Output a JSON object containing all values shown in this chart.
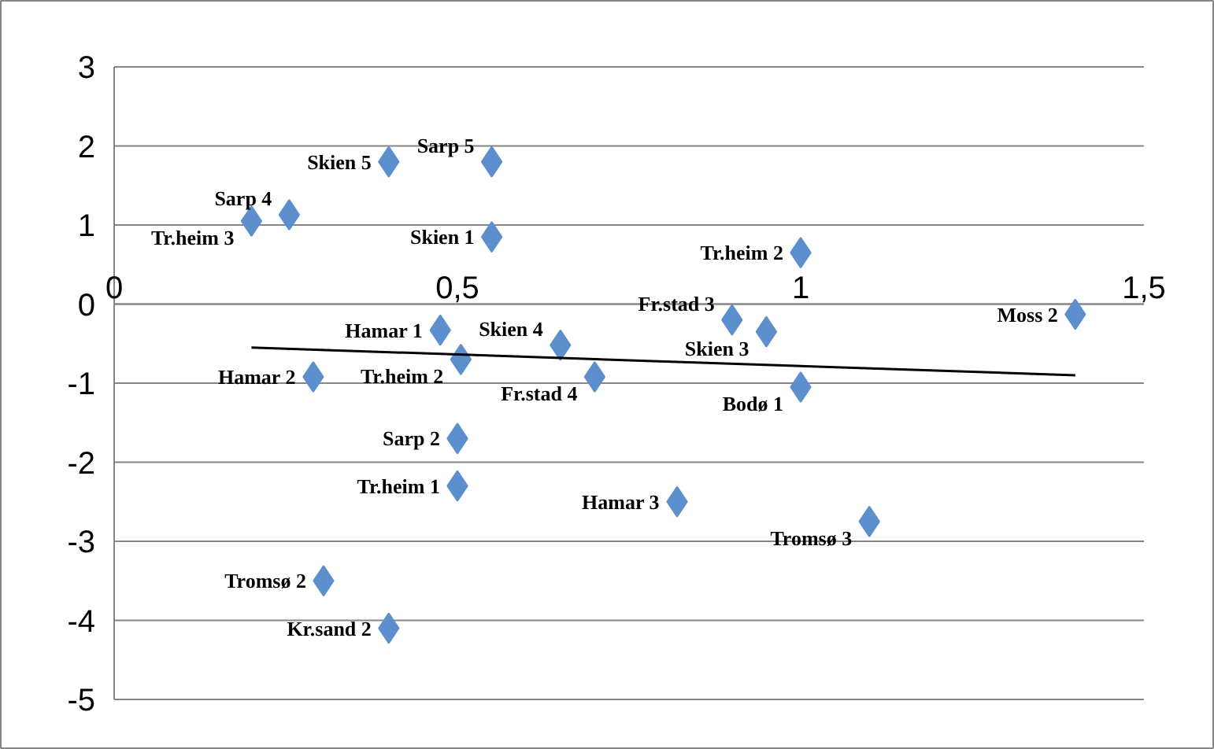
{
  "chart_data": {
    "type": "scatter",
    "xlim": [
      0,
      1.5
    ],
    "ylim": [
      -5,
      3
    ],
    "xticks": [
      0,
      {
        "value": 0.5,
        "label": "0,5"
      },
      1,
      {
        "value": 1.5,
        "label": "1,5"
      }
    ],
    "yticks": [
      -5,
      -4,
      -3,
      -2,
      -1,
      0,
      1,
      2,
      3
    ],
    "grid": "y",
    "series": [
      {
        "type": "scatter",
        "marker": "diamond",
        "color": "#5b8fce",
        "x": [
          0.255,
          0.2,
          0.4,
          0.55,
          0.55,
          1.0,
          0.9,
          0.95,
          1.4,
          0.475,
          0.65,
          0.505,
          0.29,
          0.7,
          1.0,
          0.5,
          0.5,
          0.82,
          1.1,
          0.305,
          0.4
        ],
        "values": [
          1.13,
          1.05,
          1.8,
          1.8,
          0.85,
          0.65,
          -0.2,
          -0.35,
          -0.13,
          -0.33,
          -0.52,
          -0.7,
          -0.92,
          -0.92,
          -1.05,
          -1.7,
          -2.3,
          -2.5,
          -2.75,
          -3.5,
          -4.1
        ]
      },
      {
        "type": "line",
        "color": "#000000",
        "x": [
          0.2,
          1.4
        ],
        "values": [
          -0.55,
          -0.9
        ]
      }
    ],
    "annotations": [
      {
        "text": "Sarp 4",
        "x": 0.255,
        "y": 1.13
      },
      {
        "text": "Tr.heim 3",
        "x": 0.2,
        "y": 1.05
      },
      {
        "text": "Skien 5",
        "x": 0.4,
        "y": 1.8
      },
      {
        "text": "Sarp 5",
        "x": 0.55,
        "y": 1.8
      },
      {
        "text": "Skien 1",
        "x": 0.55,
        "y": 0.85
      },
      {
        "text": "Tr.heim 2",
        "x": 1.0,
        "y": 0.65
      },
      {
        "text": "Fr.stad 3",
        "x": 0.9,
        "y": -0.2
      },
      {
        "text": "Skien 3",
        "x": 0.95,
        "y": -0.35
      },
      {
        "text": "Moss 2",
        "x": 1.4,
        "y": -0.13
      },
      {
        "text": "Hamar 1",
        "x": 0.475,
        "y": -0.33
      },
      {
        "text": "Skien 4",
        "x": 0.65,
        "y": -0.52
      },
      {
        "text": "Tr.heim 2",
        "x": 0.505,
        "y": -0.7
      },
      {
        "text": "Hamar 2",
        "x": 0.29,
        "y": -0.92
      },
      {
        "text": "Fr.stad 4",
        "x": 0.7,
        "y": -0.92
      },
      {
        "text": "Bodø 1",
        "x": 1.0,
        "y": -1.05
      },
      {
        "text": "Sarp 2",
        "x": 0.5,
        "y": -1.7
      },
      {
        "text": "Tr.heim 1",
        "x": 0.5,
        "y": -2.3
      },
      {
        "text": "Hamar 3",
        "x": 0.82,
        "y": -2.5
      },
      {
        "text": "Tromsø 3",
        "x": 1.1,
        "y": -2.75
      },
      {
        "text": "Tromsø 2",
        "x": 0.305,
        "y": -3.5
      },
      {
        "text": "Kr.sand 2",
        "x": 0.4,
        "y": -4.1
      }
    ]
  }
}
